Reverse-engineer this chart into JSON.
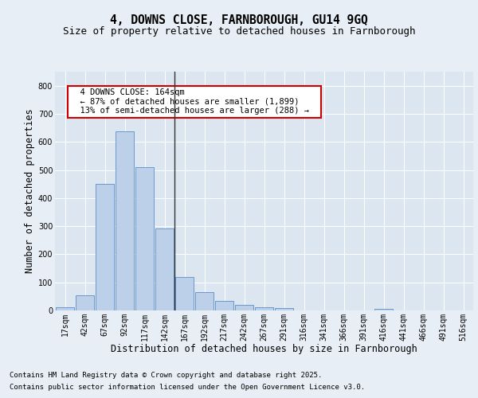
{
  "title_line1": "4, DOWNS CLOSE, FARNBOROUGH, GU14 9GQ",
  "title_line2": "Size of property relative to detached houses in Farnborough",
  "xlabel": "Distribution of detached houses by size in Farnborough",
  "ylabel": "Number of detached properties",
  "bar_labels": [
    "17sqm",
    "42sqm",
    "67sqm",
    "92sqm",
    "117sqm",
    "142sqm",
    "167sqm",
    "192sqm",
    "217sqm",
    "242sqm",
    "267sqm",
    "291sqm",
    "316sqm",
    "341sqm",
    "366sqm",
    "391sqm",
    "416sqm",
    "441sqm",
    "466sqm",
    "491sqm",
    "516sqm"
  ],
  "bar_values": [
    12,
    55,
    450,
    638,
    510,
    293,
    120,
    65,
    35,
    20,
    10,
    8,
    0,
    0,
    0,
    0,
    5,
    0,
    0,
    0,
    0
  ],
  "bar_color": "#bdd0e9",
  "bar_edge_color": "#5b8dc8",
  "vline_color": "#333333",
  "annotation_text": "  4 DOWNS CLOSE: 164sqm  \n  ← 87% of detached houses are smaller (1,899)  \n  13% of semi-detached houses are larger (288) →  ",
  "annotation_box_color": "#ffffff",
  "annotation_box_edge": "#cc0000",
  "ylim": [
    0,
    850
  ],
  "yticks": [
    0,
    100,
    200,
    300,
    400,
    500,
    600,
    700,
    800
  ],
  "background_color": "#e8eef5",
  "plot_bg_color": "#dce6f0",
  "grid_color": "#ffffff",
  "footnote_line1": "Contains HM Land Registry data © Crown copyright and database right 2025.",
  "footnote_line2": "Contains public sector information licensed under the Open Government Licence v3.0.",
  "title_fontsize": 10.5,
  "subtitle_fontsize": 9,
  "axis_label_fontsize": 8.5,
  "tick_fontsize": 7,
  "annotation_fontsize": 7.5,
  "footnote_fontsize": 6.5
}
